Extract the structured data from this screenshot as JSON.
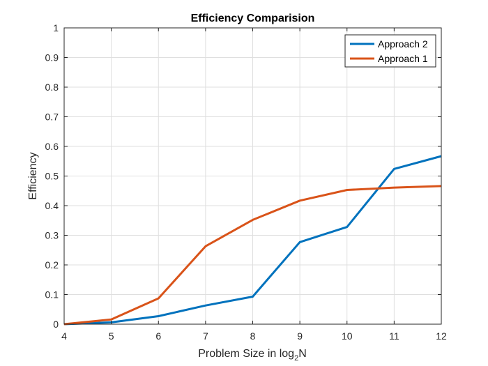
{
  "chart_data": {
    "type": "line",
    "title": "Efficiency Comparision",
    "xlabel_main": "Problem Size in log",
    "xlabel_sub": "2",
    "xlabel_tail": "N",
    "ylabel": "Efficiency",
    "xlim": [
      4,
      12
    ],
    "ylim": [
      0,
      1
    ],
    "xticks": [
      4,
      5,
      6,
      7,
      8,
      9,
      10,
      11,
      12
    ],
    "yticks": [
      0,
      0.1,
      0.2,
      0.3,
      0.4,
      0.5,
      0.6,
      0.7,
      0.8,
      0.9,
      1
    ],
    "grid": true,
    "legend_position": "top-right",
    "series": [
      {
        "name": "Approach 2",
        "color": "#0072BD",
        "x": [
          4,
          5,
          6,
          7,
          8,
          9,
          10,
          11,
          12
        ],
        "y": [
          0,
          0.006,
          0.027,
          0.063,
          0.093,
          0.277,
          0.328,
          0.524,
          0.567
        ]
      },
      {
        "name": "Approach 1",
        "color": "#D95319",
        "x": [
          4,
          5,
          6,
          7,
          8,
          9,
          10,
          11,
          12
        ],
        "y": [
          0,
          0.016,
          0.087,
          0.263,
          0.352,
          0.417,
          0.453,
          0.461,
          0.466
        ]
      }
    ]
  }
}
